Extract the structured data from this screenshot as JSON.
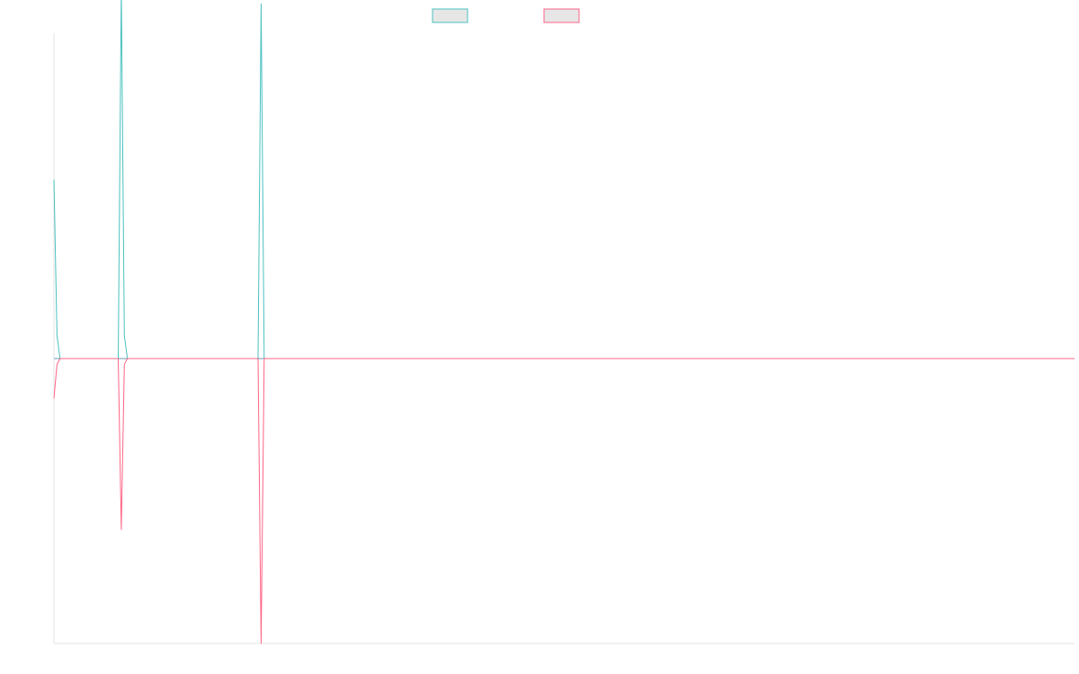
{
  "chart_data": {
    "type": "line",
    "title": "",
    "xlabel": "",
    "ylabel": "",
    "grid": false,
    "legend_position": "top-center",
    "xlim": [
      0,
      1000
    ],
    "ylim": [
      -1,
      1
    ],
    "x": [
      0,
      3,
      6,
      63,
      66,
      69,
      72,
      75,
      200,
      203,
      206,
      1000
    ],
    "series": [
      {
        "name": "",
        "color": "#4bc0c0",
        "values": [
          0.55,
          0.07,
          0,
          0,
          1.14,
          0.07,
          0,
          0,
          0,
          1.09,
          0,
          0
        ]
      },
      {
        "name": "",
        "color": "#ff6384",
        "values": [
          -0.14,
          -0.02,
          0,
          0,
          -0.6,
          -0.02,
          0,
          0,
          0,
          -1.0,
          0,
          0
        ]
      }
    ],
    "zero_line_color": "#6f9ab5"
  }
}
